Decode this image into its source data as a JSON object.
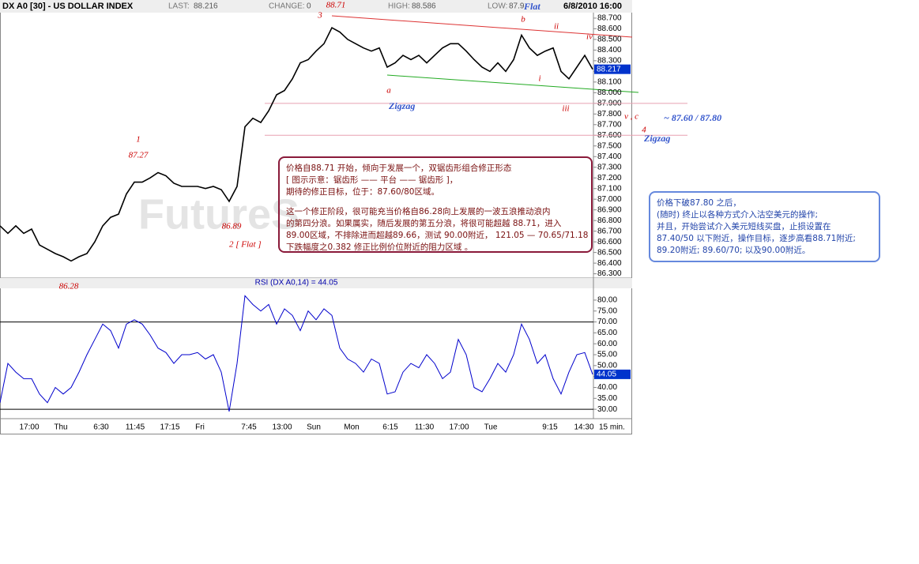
{
  "header": {
    "symbol": "DX A0 [30] - US DOLLAR INDEX",
    "last_label": "LAST:",
    "last": "88.216",
    "change_label": "CHANGE:",
    "change": "0",
    "high_label": "HIGH:",
    "high": "88.586",
    "low_label": "LOW:",
    "low": "87.9",
    "datetime": "6/8/2010 16:00"
  },
  "chart_data": [
    {
      "type": "line",
      "watermark": "FutureS",
      "color": "#000000",
      "last_tag": "88.217",
      "values": [
        86.75,
        86.68,
        86.75,
        86.68,
        86.72,
        86.57,
        86.53,
        86.49,
        86.46,
        86.42,
        86.46,
        86.49,
        86.6,
        86.75,
        86.83,
        86.86,
        87.05,
        87.16,
        87.16,
        87.2,
        87.25,
        87.22,
        87.15,
        87.12,
        87.12,
        87.12,
        87.1,
        87.12,
        87.09,
        86.98,
        87.12,
        87.68,
        87.76,
        87.72,
        87.83,
        87.98,
        88.02,
        88.13,
        88.28,
        88.31,
        88.39,
        88.46,
        88.61,
        88.57,
        88.5,
        88.46,
        88.42,
        88.39,
        88.42,
        88.24,
        88.28,
        88.35,
        88.31,
        88.35,
        88.28,
        88.35,
        88.42,
        88.46,
        88.46,
        88.39,
        88.31,
        88.24,
        88.2,
        88.28,
        88.2,
        88.31,
        88.54,
        88.42,
        88.35,
        88.39,
        88.42,
        88.2,
        88.13,
        88.24,
        88.35,
        88.22
      ],
      "ylim": [
        86.26,
        88.87
      ],
      "yticks": [
        {
          "value": 86.3,
          "label": "86.300"
        },
        {
          "value": 86.4,
          "label": "86.400"
        },
        {
          "value": 86.5,
          "label": "86.500"
        },
        {
          "value": 86.6,
          "label": "86.600"
        },
        {
          "value": 86.7,
          "label": "86.700"
        },
        {
          "value": 86.8,
          "label": "86.800"
        },
        {
          "value": 86.9,
          "label": "86.900"
        },
        {
          "value": 87.0,
          "label": "87.000"
        },
        {
          "value": 87.1,
          "label": "87.100"
        },
        {
          "value": 87.2,
          "label": "87.200"
        },
        {
          "value": 87.3,
          "label": "87.300"
        },
        {
          "value": 87.4,
          "label": "87.400"
        },
        {
          "value": 87.5,
          "label": "87.500"
        },
        {
          "value": 87.6,
          "label": "87.600"
        },
        {
          "value": 87.7,
          "label": "87.700"
        },
        {
          "value": 87.8,
          "label": "87.800"
        },
        {
          "value": 87.9,
          "label": "87.900"
        },
        {
          "value": 88.0,
          "label": "88.000"
        },
        {
          "value": 88.1,
          "label": "88.100"
        },
        {
          "value": 88.2,
          "label": "88.200"
        },
        {
          "value": 88.3,
          "label": "88.300"
        },
        {
          "value": 88.4,
          "label": "88.400"
        },
        {
          "value": 88.5,
          "label": "88.500"
        },
        {
          "value": 88.6,
          "label": "88.600"
        },
        {
          "value": 88.7,
          "label": "88.700"
        }
      ],
      "hlines": [
        87.9,
        87.6
      ],
      "annotations": [
        "3",
        "88.71",
        "b",
        "ii",
        "iv",
        "a",
        "i",
        "iii",
        "v , c",
        "4",
        "1",
        "87.27",
        "86.89",
        "2  [ Flat ]",
        "86.28",
        "Flat",
        "Zigzag",
        "Zigzag",
        "~ 87.60 / 87.80"
      ]
    },
    {
      "type": "line",
      "title": "RSI (DX A0,14) = 44.05",
      "color": "#0000cc",
      "last_tag": "44.05",
      "values": [
        33,
        51,
        47,
        44,
        44,
        37,
        33,
        40,
        37,
        40,
        47,
        55,
        62,
        69,
        66,
        58,
        69,
        71,
        69,
        64,
        58,
        56,
        51,
        55,
        55,
        56,
        53,
        55,
        47,
        29,
        51,
        82,
        78,
        75,
        78,
        69,
        76,
        73,
        66,
        75,
        71,
        76,
        73,
        58,
        53,
        51,
        47,
        53,
        51,
        37,
        38,
        47,
        51,
        49,
        55,
        51,
        44,
        47,
        62,
        55,
        40,
        38,
        44,
        51,
        47,
        55,
        69,
        62,
        51,
        55,
        44,
        37,
        47,
        55,
        56,
        46
      ],
      "ylim": [
        25.7,
        85.4
      ],
      "yticks": [
        {
          "value": 30,
          "label": "30.00"
        },
        {
          "value": 35,
          "label": "35.00"
        },
        {
          "value": 40,
          "label": "40.00"
        },
        {
          "value": 45,
          "label": "45.00"
        },
        {
          "value": 50,
          "label": "50.00"
        },
        {
          "value": 55,
          "label": "55.00"
        },
        {
          "value": 60,
          "label": "60.00"
        },
        {
          "value": 65,
          "label": "65.00"
        },
        {
          "value": 70,
          "label": "70.00"
        },
        {
          "value": 75,
          "label": "75.00"
        },
        {
          "value": 80,
          "label": "80.00"
        }
      ],
      "hlines": [
        70,
        30
      ],
      "x_labels": [
        "17:00",
        "Thu",
        "6:30",
        "11:45",
        "17:15",
        "Fri",
        "7:45",
        "13:00",
        "Sun",
        "Mon",
        "6:15",
        "11:30",
        "17:00",
        "Tue",
        "9:15",
        "14:30"
      ],
      "x_unit": "15 min."
    }
  ],
  "notes": [
    {
      "lines": [
        "价格自88.71 开始，倾向于发展一个，双锯齿形组合修正形态",
        "[ 图示示意：锯齿形 —— 平台 —— 锯齿形 ]，",
        "期待的修正目标，位于：87.60/80区域。",
        "这一个修正阶段，很可能充当价格自86.28向上发展的一波五浪推动浪内",
        "的第四分浪。如果属实，随后发展的第五分浪，将很可能超越 88.71，进入",
        "89.00区域，不排除进而超越89.66，测试 90.00附近， 121.05 — 70.65/71.18",
        "下跌幅度之0.382 修正比例价位附近的阻力区域 。"
      ]
    },
    {
      "lines": [
        "价格下破87.80 之后，",
        "(随时) 终止以各种方式介入沽空美元的操作;",
        "并且，开始尝试介入美元短线买盘，止损设置在",
        "87.40/50 以下附近，操作目标，逐步高看88.71附近;",
        "89.20附近; 89.60/70; 以及90.00附近。"
      ]
    }
  ]
}
